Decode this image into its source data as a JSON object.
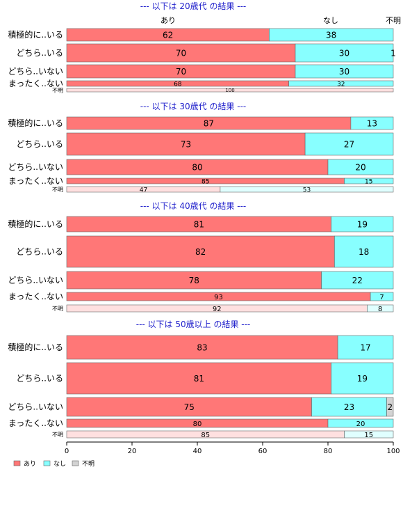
{
  "chart_data": {
    "type": "bar",
    "orientation": "horizontal-stacked-100",
    "series_names": [
      "あり",
      "なし",
      "不明"
    ],
    "colors": [
      "#ff7777",
      "#88ffff",
      "#d3d3d3"
    ],
    "xlim": [
      0,
      100
    ],
    "x_ticks": [
      "0",
      "20",
      "40",
      "60",
      "80",
      "100"
    ],
    "top_labels": [
      "あり",
      "なし",
      "不明"
    ],
    "legend_placement": "bottom-left",
    "panels": [
      {
        "title": "--- 以下は 20歳代 の結果 ---",
        "categories": [
          "積極的に..いる",
          "どちら..いる",
          "どちら..いない",
          "まったく..ない",
          "不明"
        ],
        "values": [
          [
            62,
            38,
            0
          ],
          [
            70,
            30,
            1
          ],
          [
            70,
            30,
            0
          ],
          [
            68,
            32,
            0
          ],
          [
            100,
            0,
            0
          ]
        ],
        "labels": [
          [
            "62",
            "38",
            ""
          ],
          [
            "70",
            "30",
            "1"
          ],
          [
            "70",
            "30",
            ""
          ],
          [
            "68",
            "32",
            ""
          ],
          [
            "100",
            "",
            ""
          ]
        ]
      },
      {
        "title": "--- 以下は 30歳代 の結果 ---",
        "categories": [
          "積極的に..いる",
          "どちら..いる",
          "どちら..いない",
          "まったく..ない",
          "不明"
        ],
        "values": [
          [
            87,
            13,
            0
          ],
          [
            73,
            27,
            0
          ],
          [
            80,
            20,
            0
          ],
          [
            85,
            15,
            0
          ],
          [
            47,
            53,
            0
          ]
        ],
        "labels": [
          [
            "87",
            "13",
            ""
          ],
          [
            "73",
            "27",
            ""
          ],
          [
            "80",
            "20",
            ""
          ],
          [
            "85",
            "15",
            ""
          ],
          [
            "47",
            "53",
            ""
          ]
        ]
      },
      {
        "title": "--- 以下は 40歳代 の結果 ---",
        "categories": [
          "積極的に..いる",
          "どちら..いる",
          "どちら..いない",
          "まったく..ない",
          "不明"
        ],
        "values": [
          [
            81,
            19,
            0
          ],
          [
            82,
            18,
            0
          ],
          [
            78,
            22,
            0
          ],
          [
            93,
            7,
            0
          ],
          [
            92,
            8,
            0
          ]
        ],
        "labels": [
          [
            "81",
            "19",
            ""
          ],
          [
            "82",
            "18",
            ""
          ],
          [
            "78",
            "22",
            ""
          ],
          [
            "93",
            "7",
            ""
          ],
          [
            "92",
            "8",
            ""
          ]
        ]
      },
      {
        "title": "--- 以下は 50歳以上 の結果 ---",
        "categories": [
          "積極的に..いる",
          "どちら..いる",
          "どちら..いない",
          "まったく..ない",
          "不明"
        ],
        "values": [
          [
            83,
            17,
            0
          ],
          [
            81,
            19,
            0
          ],
          [
            75,
            23,
            2
          ],
          [
            80,
            20,
            0
          ],
          [
            85,
            15,
            0
          ]
        ],
        "labels": [
          [
            "83",
            "17",
            ""
          ],
          [
            "81",
            "19",
            ""
          ],
          [
            "75",
            "23",
            "2"
          ],
          [
            "80",
            "20",
            ""
          ],
          [
            "85",
            "15",
            ""
          ]
        ]
      }
    ]
  }
}
